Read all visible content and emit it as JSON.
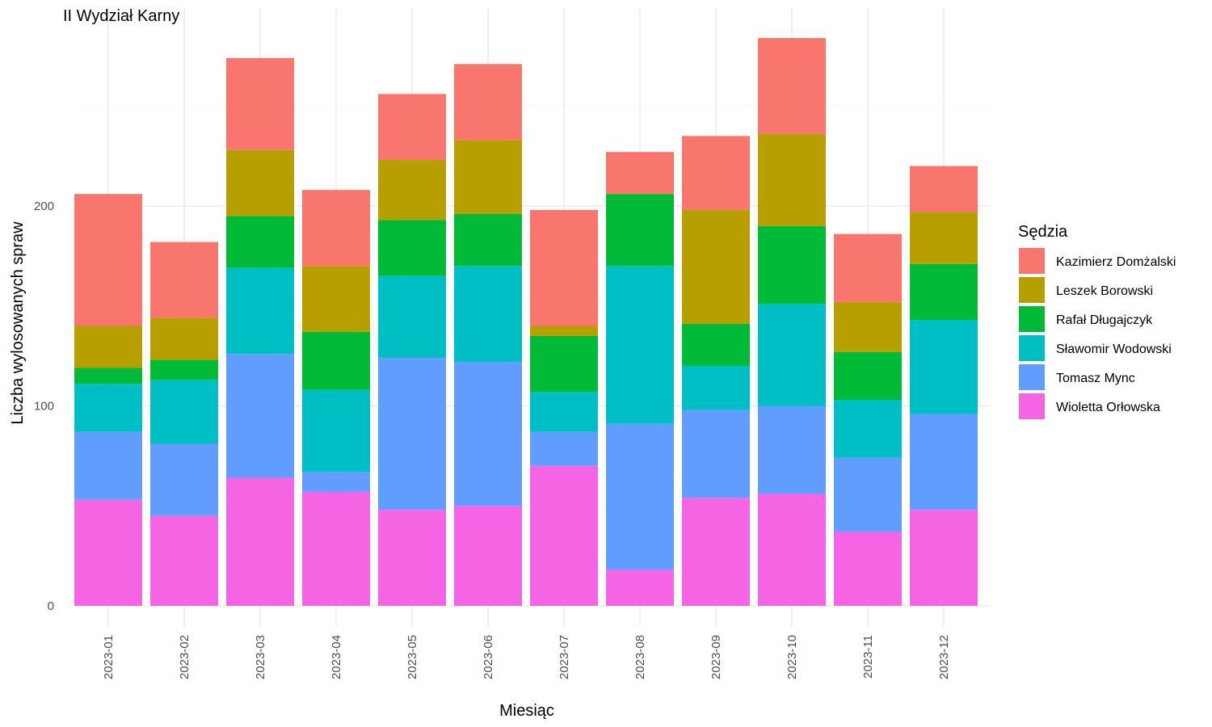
{
  "chart_data": {
    "type": "bar",
    "stacked": true,
    "title": "II Wydział Karny",
    "xlabel": "Miesiąc",
    "ylabel": "Liczba wylosowanych spraw",
    "ylim": [
      0,
      290
    ],
    "yticks": [
      0,
      100,
      200
    ],
    "grid": true,
    "legend_title": "Sędzia",
    "legend_position": "right",
    "categories": [
      "2023-01",
      "2023-02",
      "2023-03",
      "2023-04",
      "2023-05",
      "2023-06",
      "2023-07",
      "2023-08",
      "2023-09",
      "2023-10",
      "2023-11",
      "2023-12"
    ],
    "series": [
      {
        "name": "Wioletta Orłowska",
        "color": "#F564E3",
        "values": [
          53,
          45,
          64,
          57,
          48,
          50,
          70,
          18,
          54,
          56,
          37,
          48
        ]
      },
      {
        "name": "Tomasz Mync",
        "color": "#619CFF",
        "values": [
          34,
          36,
          62,
          10,
          76,
          72,
          17,
          73,
          44,
          44,
          37,
          48
        ]
      },
      {
        "name": "Sławomir Wodowski",
        "color": "#00BFC4",
        "values": [
          24,
          32,
          43,
          41,
          41,
          48,
          20,
          79,
          22,
          51,
          29,
          47
        ]
      },
      {
        "name": "Rafał Długajczyk",
        "color": "#00BA38",
        "values": [
          8,
          10,
          26,
          29,
          28,
          26,
          28,
          36,
          21,
          39,
          24,
          28
        ]
      },
      {
        "name": "Leszek Borowski",
        "color": "#B79F00",
        "values": [
          21,
          21,
          33,
          33,
          30,
          37,
          5,
          0,
          57,
          46,
          25,
          26
        ]
      },
      {
        "name": "Kazimierz Domżalski",
        "color": "#F8766D",
        "values": [
          66,
          38,
          46,
          38,
          33,
          38,
          58,
          21,
          37,
          48,
          34,
          23
        ]
      }
    ]
  }
}
